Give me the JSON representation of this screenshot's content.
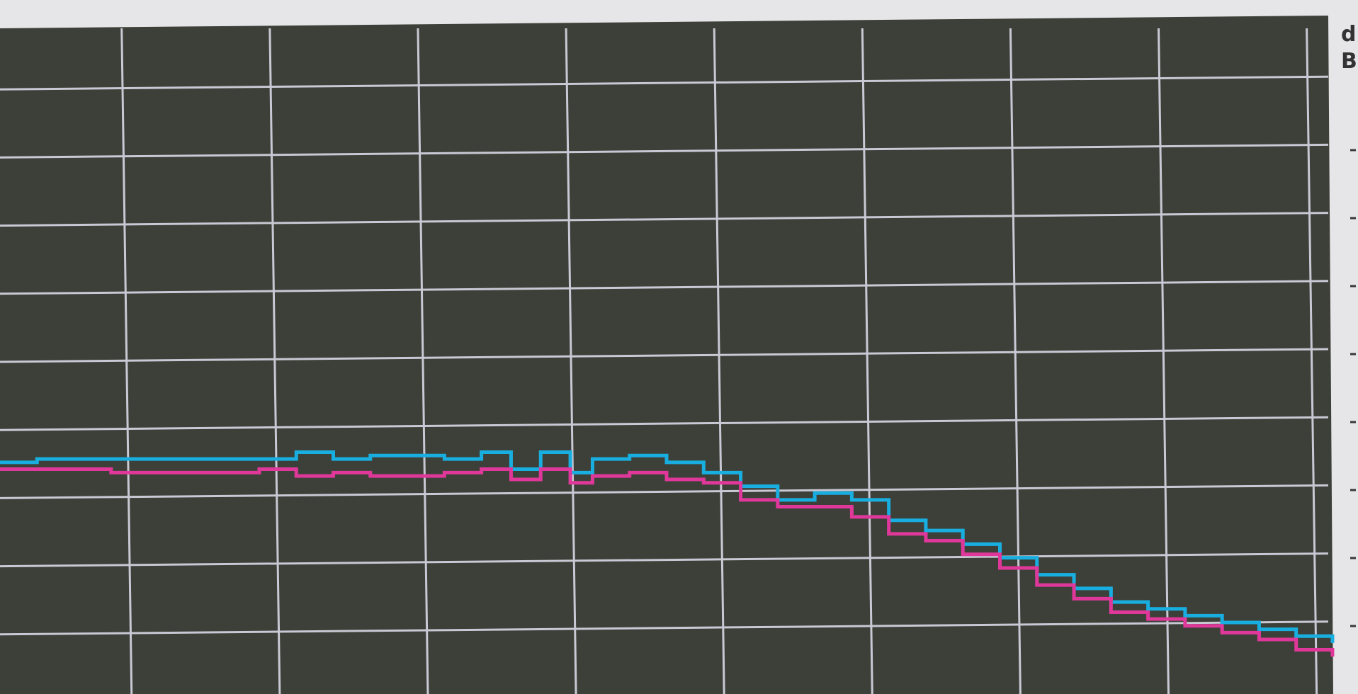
{
  "colors": {
    "background": "#3d4038",
    "grid": "#c9c8d4",
    "frame": "#e6e5e8",
    "series_a": "#19aee0",
    "series_b": "#e0389a"
  },
  "side_label": {
    "glyph_1": "d",
    "glyph_2": "B"
  },
  "chart_data": {
    "type": "line",
    "title": "",
    "xlabel": "",
    "ylabel": "",
    "grid": true,
    "legend": "none",
    "xlim": [
      0,
      18
    ],
    "ylim": [
      0,
      10
    ],
    "x_gridlines": [
      1.7,
      3.7,
      5.7,
      7.7,
      9.7,
      11.7,
      13.7,
      15.7,
      17.7
    ],
    "y_gridlines": [
      1,
      2,
      3,
      4,
      5,
      6,
      7,
      8,
      9
    ],
    "right_tick_count": 8,
    "series": [
      {
        "color": "#19aee0",
        "x": [
          0,
          0.5,
          1.5,
          2.5,
          3.5,
          4.0,
          4.5,
          5.0,
          5.5,
          6.0,
          6.5,
          6.9,
          7.3,
          7.7,
          8.0,
          8.5,
          9.0,
          9.5,
          10.0,
          10.5,
          11.0,
          11.5,
          12.0,
          12.5,
          13.0,
          13.5,
          14.0,
          14.5,
          15.0,
          15.5,
          16.0,
          16.5,
          17.0,
          17.5,
          17.99
        ],
        "y": [
          3.4,
          3.45,
          3.45,
          3.45,
          3.45,
          3.55,
          3.45,
          3.5,
          3.5,
          3.45,
          3.55,
          3.3,
          3.55,
          3.25,
          3.45,
          3.5,
          3.4,
          3.25,
          3.05,
          2.85,
          2.95,
          2.85,
          2.55,
          2.4,
          2.2,
          2.0,
          1.75,
          1.55,
          1.35,
          1.25,
          1.15,
          1.05,
          0.95,
          0.85,
          0.75
        ]
      },
      {
        "color": "#e0389a",
        "x": [
          0,
          0.5,
          1.5,
          2.5,
          3.5,
          4.0,
          4.5,
          5.0,
          5.5,
          6.0,
          6.5,
          6.9,
          7.3,
          7.7,
          8.0,
          8.5,
          9.0,
          9.5,
          10.0,
          10.5,
          11.0,
          11.5,
          12.0,
          12.5,
          13.0,
          13.5,
          14.0,
          14.5,
          15.0,
          15.5,
          16.0,
          16.5,
          17.0,
          17.5,
          17.99
        ],
        "y": [
          3.3,
          3.3,
          3.25,
          3.25,
          3.3,
          3.2,
          3.25,
          3.2,
          3.2,
          3.25,
          3.3,
          3.15,
          3.3,
          3.1,
          3.2,
          3.25,
          3.15,
          3.1,
          2.85,
          2.75,
          2.75,
          2.6,
          2.35,
          2.25,
          2.05,
          1.85,
          1.6,
          1.4,
          1.2,
          1.1,
          1.0,
          0.9,
          0.8,
          0.65,
          0.55
        ]
      }
    ]
  }
}
